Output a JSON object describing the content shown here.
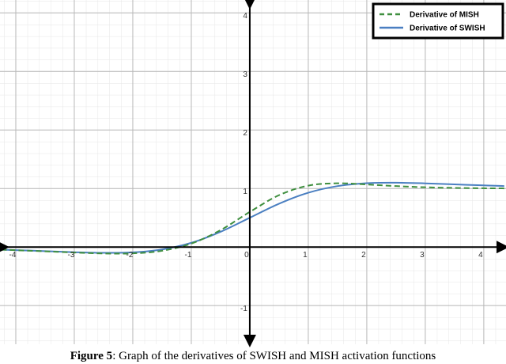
{
  "chart_data": {
    "type": "line",
    "x": [
      -4.25,
      -4,
      -3.5,
      -3,
      -2.5,
      -2,
      -1.5,
      -1,
      -0.5,
      0,
      0.5,
      1,
      1.5,
      2,
      2.5,
      3,
      3.5,
      4,
      4.35
    ],
    "series": [
      {
        "name": "Derivative of MISH",
        "color": "#3f8f3f",
        "dash": true,
        "values": [
          -0.046,
          -0.054,
          -0.073,
          -0.093,
          -0.11,
          -0.108,
          -0.064,
          0.059,
          0.289,
          0.6,
          0.886,
          1.049,
          1.089,
          1.069,
          1.041,
          1.021,
          1.01,
          1.004,
          1.002
        ]
      },
      {
        "name": "Derivative of SWISH",
        "color": "#4a7fc1",
        "dash": false,
        "values": [
          -0.045,
          -0.053,
          -0.07,
          -0.088,
          -0.099,
          -0.091,
          -0.041,
          0.072,
          0.26,
          0.5,
          0.74,
          0.928,
          1.041,
          1.091,
          1.099,
          1.088,
          1.07,
          1.053,
          1.042
        ]
      }
    ],
    "xlim": [
      -4.27,
      4.38
    ],
    "ylim": [
      -1.66,
      4.22
    ],
    "xticks": [
      -4,
      -3,
      -2,
      -1,
      0,
      1,
      2,
      3,
      4
    ],
    "yticks": [
      -1,
      1,
      2,
      3,
      4
    ],
    "grid": true,
    "legend": "top-right",
    "caption_label": "Figure 5",
    "caption_text": ": Graph of the derivatives of SWISH and MISH activation functions"
  }
}
